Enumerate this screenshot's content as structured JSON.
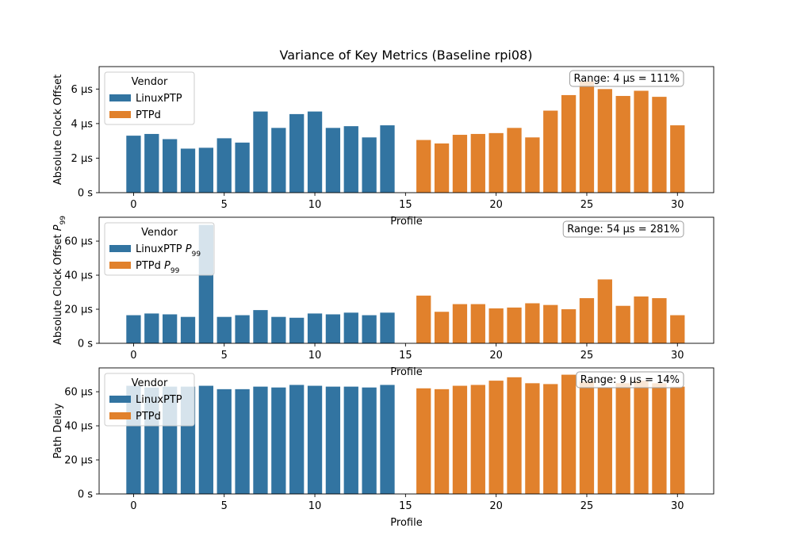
{
  "title": "Variance of Key Metrics (Baseline rpi08)",
  "colors": {
    "LinuxPTP": "#3274a1",
    "PTPd": "#e1812c"
  },
  "chart_data": [
    {
      "type": "bar",
      "ylabel": "Absolute Clock Offset",
      "ylabel_sub": "",
      "xlabel": "Profile",
      "xlim": [
        -1.9,
        32
      ],
      "ylim": [
        0,
        7.3
      ],
      "yticks": [
        {
          "v": 0,
          "label": "0 s"
        },
        {
          "v": 2,
          "label": "2 µs"
        },
        {
          "v": 4,
          "label": "4 µs"
        },
        {
          "v": 6,
          "label": "6 µs"
        }
      ],
      "xticks": [
        {
          "v": 0,
          "label": "0"
        },
        {
          "v": 5,
          "label": "5"
        },
        {
          "v": 10,
          "label": "10"
        },
        {
          "v": 15,
          "label": "15"
        },
        {
          "v": 20,
          "label": "20"
        },
        {
          "v": 25,
          "label": "25"
        },
        {
          "v": 30,
          "label": "30"
        }
      ],
      "legend": {
        "title": "Vendor",
        "position": "top-left",
        "entries": [
          {
            "name": "LinuxPTP",
            "sub": ""
          },
          {
            "name": "PTPd",
            "sub": ""
          }
        ]
      },
      "annotation": "Range: 4 µs = 111%",
      "series": [
        {
          "name": "LinuxPTP",
          "x": [
            0,
            1,
            2,
            3,
            4,
            5,
            6,
            7,
            8,
            9,
            10,
            11,
            12,
            13,
            14
          ],
          "values": [
            3.3,
            3.4,
            3.1,
            2.55,
            2.6,
            3.15,
            2.9,
            4.7,
            3.75,
            4.55,
            4.7,
            3.75,
            3.85,
            3.2,
            3.9
          ]
        },
        {
          "name": "PTPd",
          "x": [
            16,
            17,
            18,
            19,
            20,
            21,
            22,
            23,
            24,
            25,
            26,
            27,
            28,
            29,
            30
          ],
          "values": [
            3.05,
            2.85,
            3.35,
            3.4,
            3.45,
            3.75,
            3.2,
            4.75,
            5.65,
            6.45,
            6.0,
            5.6,
            5.9,
            5.55,
            3.9
          ]
        }
      ]
    },
    {
      "type": "bar",
      "ylabel": "Absolute Clock Offset ",
      "ylabel_sub": "99",
      "xlabel": "Profile",
      "xlim": [
        -1.9,
        32
      ],
      "ylim": [
        0,
        74
      ],
      "yticks": [
        {
          "v": 0,
          "label": "0 s"
        },
        {
          "v": 20,
          "label": "20 µs"
        },
        {
          "v": 40,
          "label": "40 µs"
        },
        {
          "v": 60,
          "label": "60 µs"
        }
      ],
      "xticks": [
        {
          "v": 0,
          "label": "0"
        },
        {
          "v": 5,
          "label": "5"
        },
        {
          "v": 10,
          "label": "10"
        },
        {
          "v": 15,
          "label": "15"
        },
        {
          "v": 20,
          "label": "20"
        },
        {
          "v": 25,
          "label": "25"
        },
        {
          "v": 30,
          "label": "30"
        }
      ],
      "legend": {
        "title": "Vendor",
        "position": "top-left",
        "entries": [
          {
            "name": "LinuxPTP ",
            "sub": "99"
          },
          {
            "name": "PTPd ",
            "sub": "99"
          }
        ]
      },
      "annotation": "Range: 54 µs = 281%",
      "series": [
        {
          "name": "LinuxPTP",
          "x": [
            0,
            1,
            2,
            3,
            4,
            5,
            6,
            7,
            8,
            9,
            10,
            11,
            12,
            13,
            14
          ],
          "values": [
            16.5,
            17.5,
            17,
            15.5,
            69.5,
            15.5,
            16.5,
            19.5,
            15.5,
            15,
            17.5,
            17,
            18,
            16.5,
            18
          ]
        },
        {
          "name": "PTPd",
          "x": [
            16,
            17,
            18,
            19,
            20,
            21,
            22,
            23,
            24,
            25,
            26,
            27,
            28,
            29,
            30
          ],
          "values": [
            28,
            18.5,
            23,
            23,
            20.5,
            21,
            23.5,
            22.5,
            20,
            26.5,
            37.5,
            22,
            27.5,
            26.5,
            16.5
          ]
        }
      ]
    },
    {
      "type": "bar",
      "ylabel": "Path Delay",
      "ylabel_sub": "",
      "xlabel": "Profile",
      "xlim": [
        -1.9,
        32
      ],
      "ylim": [
        0,
        74
      ],
      "yticks": [
        {
          "v": 0,
          "label": "0 s"
        },
        {
          "v": 20,
          "label": "20 µs"
        },
        {
          "v": 40,
          "label": "40 µs"
        },
        {
          "v": 60,
          "label": "60 µs"
        }
      ],
      "xticks": [
        {
          "v": 0,
          "label": "0"
        },
        {
          "v": 5,
          "label": "5"
        },
        {
          "v": 10,
          "label": "10"
        },
        {
          "v": 15,
          "label": "15"
        },
        {
          "v": 20,
          "label": "20"
        },
        {
          "v": 25,
          "label": "25"
        },
        {
          "v": 30,
          "label": "30"
        }
      ],
      "legend": {
        "title": "Vendor",
        "position": "top-left",
        "entries": [
          {
            "name": "LinuxPTP",
            "sub": ""
          },
          {
            "name": "PTPd",
            "sub": ""
          }
        ]
      },
      "annotation": "Range: 9 µs = 14%",
      "series": [
        {
          "name": "LinuxPTP",
          "x": [
            0,
            1,
            2,
            3,
            4,
            5,
            6,
            7,
            8,
            9,
            10,
            11,
            12,
            13,
            14
          ],
          "values": [
            63.5,
            62.5,
            63,
            63,
            63.5,
            61.5,
            61.5,
            63,
            62.5,
            64,
            63.5,
            63,
            63,
            62.5,
            64
          ]
        },
        {
          "name": "PTPd",
          "x": [
            16,
            17,
            18,
            19,
            20,
            21,
            22,
            23,
            24,
            25,
            26,
            27,
            28,
            29,
            30
          ],
          "values": [
            62,
            61.5,
            63.5,
            64,
            66.5,
            68.5,
            65,
            64.5,
            70,
            66,
            62.5,
            65,
            66.5,
            65,
            63
          ]
        }
      ]
    }
  ]
}
